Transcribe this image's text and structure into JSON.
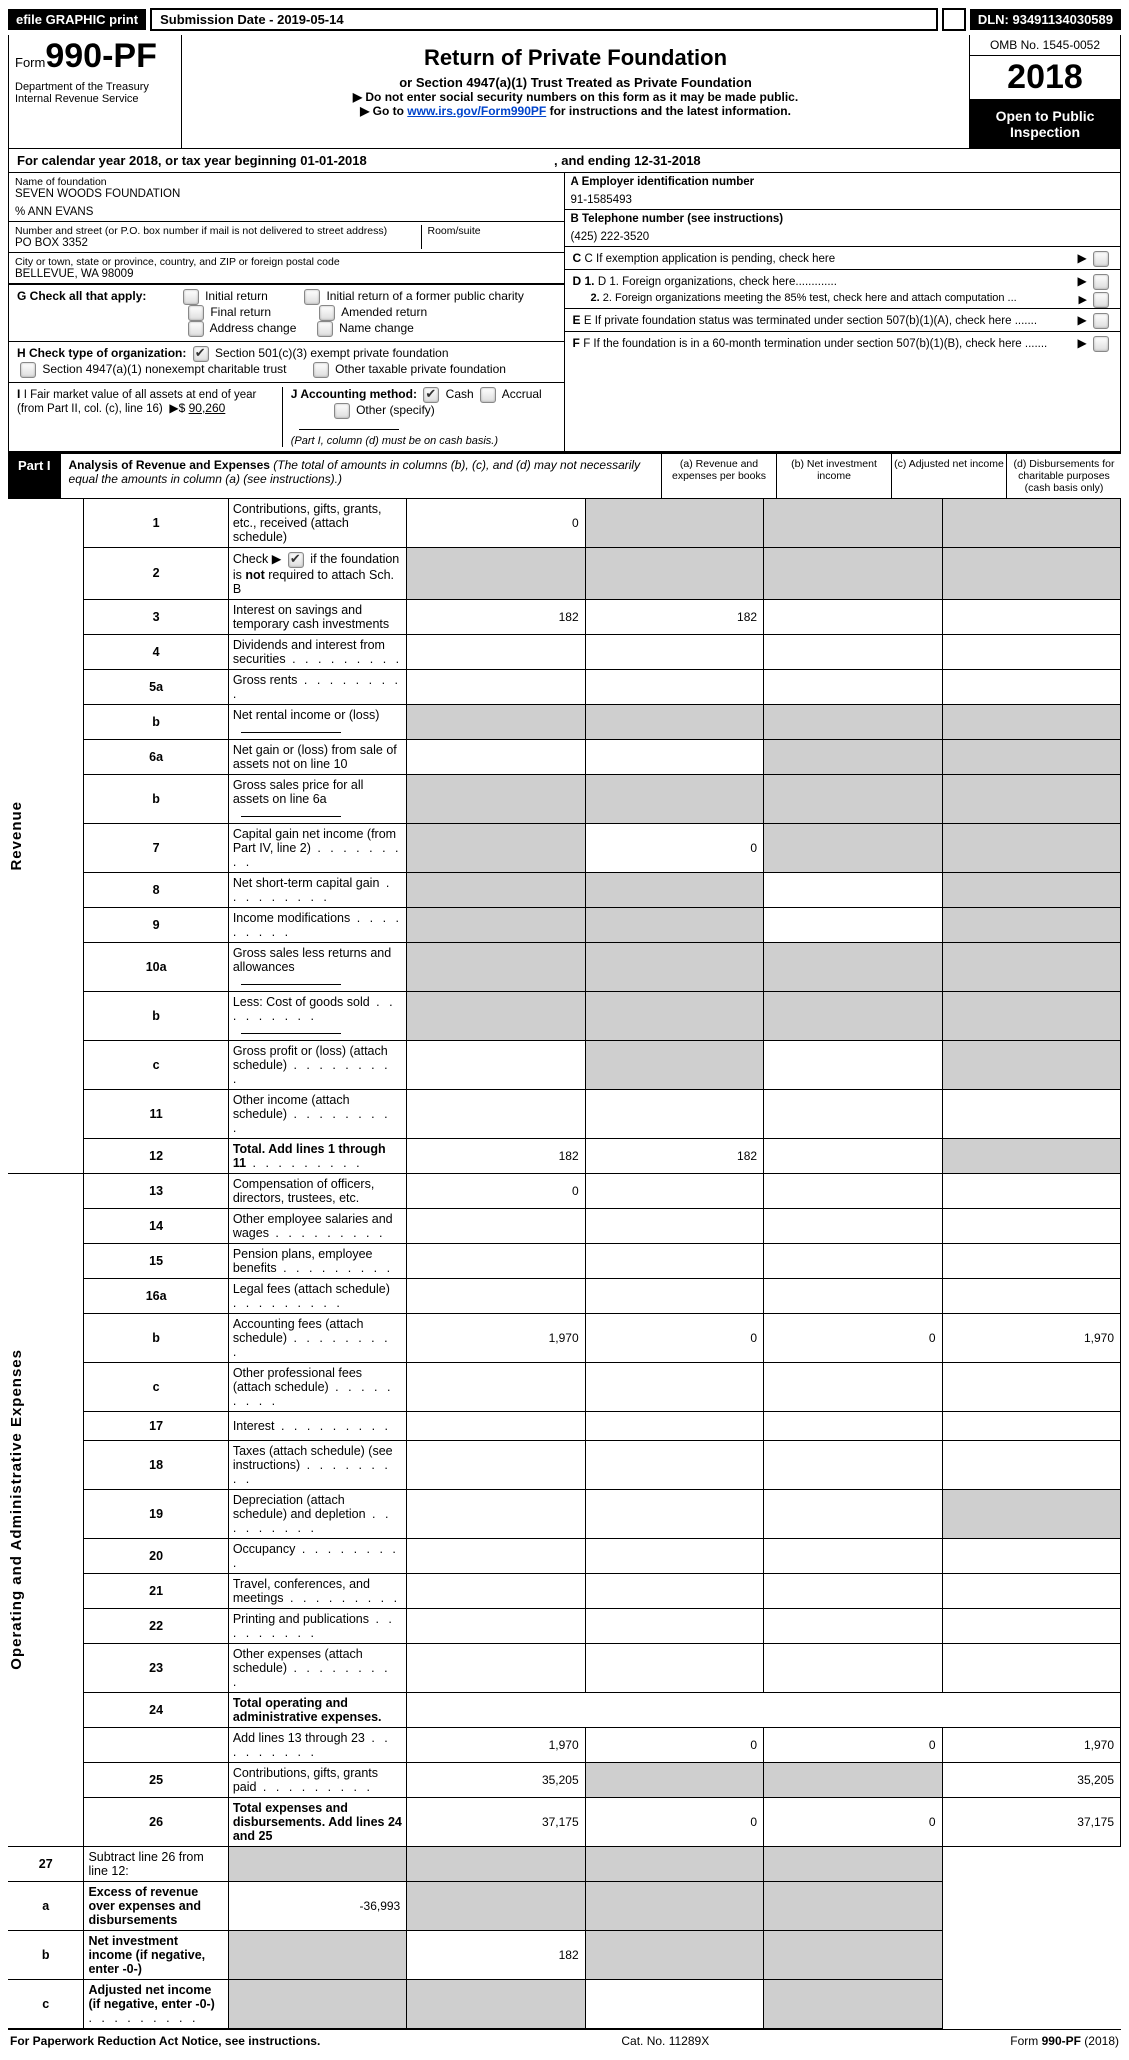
{
  "top": {
    "efile": "efile GRAPHIC print",
    "submission_label": "Submission Date - 2019-05-14",
    "dln": "DLN: 93491134030589"
  },
  "header": {
    "form_prefix": "Form",
    "form_no": "990-PF",
    "dept1": "Department of the Treasury",
    "dept2": "Internal Revenue Service",
    "title": "Return of Private Foundation",
    "subtitle1": "or Section 4947(a)(1) Trust Treated as Private Foundation",
    "subtitle2": "▶ Do not enter social security numbers on this form as it may be made public.",
    "subtitle3_pre": "▶ Go to ",
    "subtitle3_link": "www.irs.gov/Form990PF",
    "subtitle3_post": " for instructions and the latest information.",
    "omb": "OMB No. 1545-0052",
    "year": "2018",
    "inspect": "Open to Public Inspection"
  },
  "calyear": {
    "text_pre": "For calendar year 2018, or tax year beginning ",
    "begin": "01-01-2018",
    "mid": " , and ending ",
    "end": "12-31-2018"
  },
  "entity": {
    "name_label": "Name of foundation",
    "name": "SEVEN WOODS FOUNDATION",
    "care_of": "% ANN EVANS",
    "street_label": "Number and street (or P.O. box number if mail is not delivered to street address)",
    "street": "PO BOX 3352",
    "room_label": "Room/suite",
    "city_label": "City or town, state or province, country, and ZIP or foreign postal code",
    "city": "BELLEVUE, WA  98009",
    "a_label": "A Employer identification number",
    "a_value": "91-1585493",
    "b_label": "B Telephone number (see instructions)",
    "b_value": "(425) 222-3520",
    "c_label": "C  If exemption application is pending, check here",
    "d1_label": "D 1. Foreign organizations, check here.............",
    "d2_label": "2. Foreign organizations meeting the 85% test, check here and attach computation ...",
    "e_label": "E  If private foundation status was terminated under section 507(b)(1)(A), check here .......",
    "f_label": "F  If the foundation is in a 60-month termination under section 507(b)(1)(B), check here ......."
  },
  "g": {
    "label": "G Check all that apply:",
    "opts": [
      "Initial return",
      "Initial return of a former public charity",
      "Final return",
      "Amended return",
      "Address change",
      "Name change"
    ]
  },
  "h": {
    "label": "H Check type of organization:",
    "opt1": "Section 501(c)(3) exempt private foundation",
    "opt2": "Section 4947(a)(1) nonexempt charitable trust",
    "opt3": "Other taxable private foundation"
  },
  "i": {
    "fmv_label": "I Fair market value of all assets at end of year (from Part II, col. (c), line 16)",
    "fmv_value": "90,260",
    "j_label": "J Accounting method:",
    "j_cash": "Cash",
    "j_accrual": "Accrual",
    "j_other": "Other (specify)",
    "j_note": "(Part I, column (d) must be on cash basis.)"
  },
  "part1": {
    "label": "Part I",
    "title": "Analysis of Revenue and Expenses",
    "note": " (The total of amounts in columns (b), (c), and (d) may not necessarily equal the amounts in column (a) (see instructions).)",
    "col_a": "(a)   Revenue and expenses per books",
    "col_b": "(b)   Net investment income",
    "col_c": "(c)   Adjusted net income",
    "col_d": "(d)   Disbursements for charitable purposes (cash basis only)"
  },
  "side_labels": {
    "revenue": "Revenue",
    "expenses": "Operating and Administrative Expenses"
  },
  "rows": [
    {
      "n": "1",
      "desc": "Contributions, gifts, grants, etc., received (attach schedule)",
      "a": "0",
      "b_grey": true,
      "c_grey": true,
      "d_grey": true
    },
    {
      "n": "2",
      "desc": "Check ▶  [CHK]  if the foundation is not required to attach Sch. B",
      "a_grey": true,
      "b_grey": true,
      "c_grey": true,
      "d_grey": true,
      "checked": true,
      "is_check_row": true
    },
    {
      "n": "3",
      "desc": "Interest on savings and temporary cash investments",
      "a": "182",
      "b": "182"
    },
    {
      "n": "4",
      "desc": "Dividends and interest from securities",
      "dots": true
    },
    {
      "n": "5a",
      "desc": "Gross rents",
      "dots": true
    },
    {
      "n": "b",
      "desc": "Net rental income or (loss)",
      "sub": true,
      "a_grey": true,
      "b_grey": true,
      "c_grey": true,
      "d_grey": true
    },
    {
      "n": "6a",
      "desc": "Net gain or (loss) from sale of assets not on line 10",
      "c_grey": true,
      "d_grey": true
    },
    {
      "n": "b",
      "desc": "Gross sales price for all assets on line 6a",
      "sub": true,
      "a_grey": true,
      "b_grey": true,
      "c_grey": true,
      "d_grey": true
    },
    {
      "n": "7",
      "desc": "Capital gain net income (from Part IV, line 2)",
      "dots": true,
      "a_grey": true,
      "b": "0",
      "c_grey": true,
      "d_grey": true
    },
    {
      "n": "8",
      "desc": "Net short-term capital gain",
      "dots": true,
      "a_grey": true,
      "b_grey": true,
      "d_grey": true
    },
    {
      "n": "9",
      "desc": "Income modifications",
      "dots": true,
      "a_grey": true,
      "b_grey": true,
      "d_grey": true
    },
    {
      "n": "10a",
      "desc": "Gross sales less returns and allowances",
      "sub": true,
      "a_grey": true,
      "b_grey": true,
      "c_grey": true,
      "d_grey": true
    },
    {
      "n": "b",
      "desc": "Less: Cost of goods sold",
      "dots": true,
      "sub": true,
      "a_grey": true,
      "b_grey": true,
      "c_grey": true,
      "d_grey": true
    },
    {
      "n": "c",
      "desc": "Gross profit or (loss) (attach schedule)",
      "dots": true,
      "a_grey": false,
      "b_grey": true,
      "d_grey": true
    },
    {
      "n": "11",
      "desc": "Other income (attach schedule)",
      "dots": true
    },
    {
      "n": "12",
      "desc": "Total. Add lines 1 through 11",
      "dots": true,
      "bold": true,
      "a": "182",
      "b": "182",
      "d_grey": true
    }
  ],
  "exp_rows": [
    {
      "n": "13",
      "desc": "Compensation of officers, directors, trustees, etc.",
      "a": "0"
    },
    {
      "n": "14",
      "desc": "Other employee salaries and wages",
      "dots": true
    },
    {
      "n": "15",
      "desc": "Pension plans, employee benefits",
      "dots": true
    },
    {
      "n": "16a",
      "desc": "Legal fees (attach schedule)",
      "dots": true
    },
    {
      "n": "b",
      "desc": "Accounting fees (attach schedule)",
      "dots": true,
      "a": "1,970",
      "b": "0",
      "c": "0",
      "d": "1,970"
    },
    {
      "n": "c",
      "desc": "Other professional fees (attach schedule)",
      "dots": true
    },
    {
      "n": "17",
      "desc": "Interest",
      "dots": true
    },
    {
      "n": "18",
      "desc": "Taxes (attach schedule) (see instructions)",
      "dots": true
    },
    {
      "n": "19",
      "desc": "Depreciation (attach schedule) and depletion",
      "dots": true,
      "d_grey": true
    },
    {
      "n": "20",
      "desc": "Occupancy",
      "dots": true
    },
    {
      "n": "21",
      "desc": "Travel, conferences, and meetings",
      "dots": true
    },
    {
      "n": "22",
      "desc": "Printing and publications",
      "dots": true
    },
    {
      "n": "23",
      "desc": "Other expenses (attach schedule)",
      "dots": true
    },
    {
      "n": "24",
      "desc": "Total operating and administrative expenses.",
      "bold": true,
      "noval": true
    },
    {
      "n": "",
      "desc": "Add lines 13 through 23",
      "dots": true,
      "a": "1,970",
      "b": "0",
      "c": "0",
      "d": "1,970"
    },
    {
      "n": "25",
      "desc": "Contributions, gifts, grants paid",
      "dots": true,
      "a": "35,205",
      "b_grey": true,
      "c_grey": true,
      "d": "35,205"
    },
    {
      "n": "26",
      "desc": "Total expenses and disbursements. Add lines 24 and 25",
      "bold": true,
      "a": "37,175",
      "b": "0",
      "c": "0",
      "d": "37,175",
      "tall": true
    }
  ],
  "bottom_rows": [
    {
      "n": "27",
      "desc": "Subtract line 26 from line 12:",
      "a_grey": true,
      "b_grey": true,
      "c_grey": true,
      "d_grey": true
    },
    {
      "n": "a",
      "desc": "Excess of revenue over expenses and disbursements",
      "bold": true,
      "a": "-36,993",
      "b_grey": true,
      "c_grey": true,
      "d_grey": true
    },
    {
      "n": "b",
      "desc": "Net investment income (if negative, enter -0-)",
      "bold": true,
      "a_grey": true,
      "b": "182",
      "c_grey": true,
      "d_grey": true
    },
    {
      "n": "c",
      "desc": "Adjusted net income (if negative, enter -0-)",
      "bold": true,
      "dots": true,
      "a_grey": true,
      "b_grey": true,
      "d_grey": true
    }
  ],
  "footer": {
    "left": "For Paperwork Reduction Act Notice, see instructions.",
    "mid": "Cat. No. 11289X",
    "right": "Form 990-PF (2018)"
  }
}
